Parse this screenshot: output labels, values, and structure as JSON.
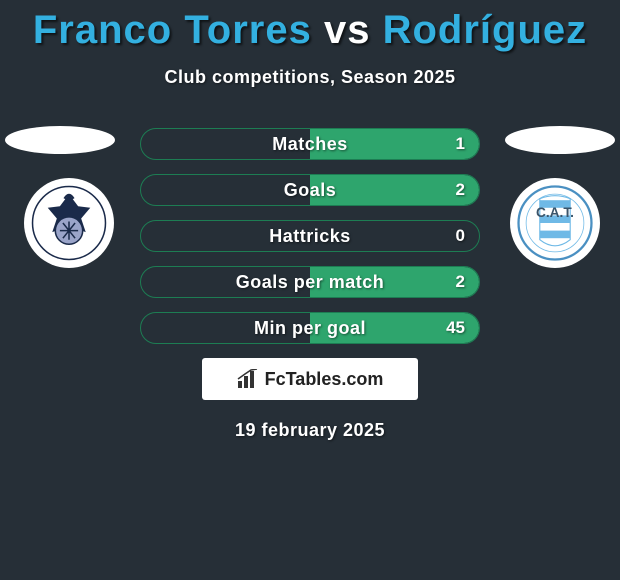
{
  "title": {
    "player1": "Franco Torres",
    "vs": "vs",
    "player2": "Rodríguez",
    "color_players": "#33b0e0",
    "color_vs": "#ffffff"
  },
  "subtitle": "Club competitions, Season 2025",
  "background_color": "#262f37",
  "row_style": {
    "border_color": "#1d7d53",
    "fill_color": "#2ea56d",
    "empty_color": "#262f37",
    "text_color": "#ffffff",
    "height": 32,
    "radius": 16
  },
  "rows": [
    {
      "label": "Matches",
      "left": "",
      "right": "1",
      "fill_left_pct": 0,
      "fill_right_pct": 50
    },
    {
      "label": "Goals",
      "left": "",
      "right": "2",
      "fill_left_pct": 0,
      "fill_right_pct": 50
    },
    {
      "label": "Hattricks",
      "left": "",
      "right": "0",
      "fill_left_pct": 0,
      "fill_right_pct": 0
    },
    {
      "label": "Goals per match",
      "left": "",
      "right": "2",
      "fill_left_pct": 0,
      "fill_right_pct": 50
    },
    {
      "label": "Min per goal",
      "left": "",
      "right": "45",
      "fill_left_pct": 0,
      "fill_right_pct": 50
    }
  ],
  "branding": "FcTables.com",
  "date": "19 february 2025",
  "crests": {
    "left": {
      "name": "gimnasia-crest",
      "colors": {
        "bg": "#ffffff",
        "main": "#1a2a4a",
        "accent": "#9aa4c9"
      }
    },
    "right": {
      "name": "atletico-tucuman-crest",
      "colors": {
        "bg": "#ffffff",
        "stripe": "#6fb9e6",
        "ring": "#4a90c2",
        "text": "#3a556b"
      }
    }
  }
}
